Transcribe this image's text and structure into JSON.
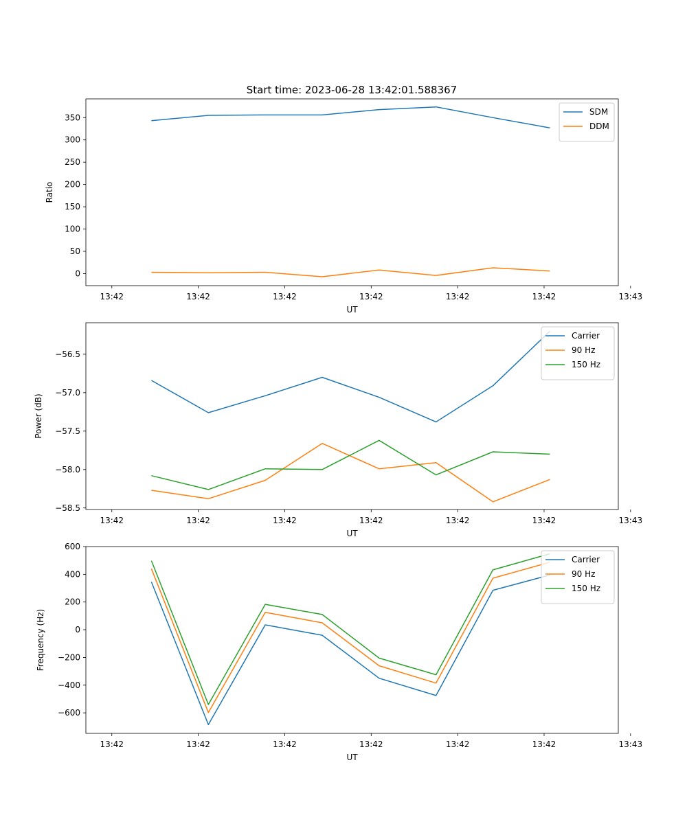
{
  "figure_title": "Start time: 2023-06-28 13:42:01.588367",
  "colors": {
    "blue": "#1f77b4",
    "orange": "#ff7f0e",
    "green": "#2ca02c"
  },
  "chart_data": [
    {
      "type": "line",
      "title": "Start time: 2023-06-28 13:42:01.588367",
      "xlabel": "UT",
      "ylabel": "Ratio",
      "x_ticks": [
        "13:42",
        "13:42",
        "13:42",
        "13:42",
        "13:42",
        "13:42",
        "13:43"
      ],
      "x_tick_values": [
        0,
        12,
        24,
        36,
        48,
        60,
        72
      ],
      "xlim": [
        -3.6,
        70.3
      ],
      "x": [
        5.5,
        13.4,
        21.3,
        29.2,
        37.1,
        45.0,
        52.9,
        60.8
      ],
      "ylim": [
        -27,
        392
      ],
      "y_ticks": [
        0,
        50,
        100,
        150,
        200,
        250,
        300,
        350
      ],
      "legend_loc": "upper right",
      "grid": false,
      "series": [
        {
          "name": "SDM",
          "color": "#1f77b4",
          "values": [
            343,
            355,
            356,
            356,
            368,
            374,
            350,
            327
          ]
        },
        {
          "name": "DDM",
          "color": "#ff7f0e",
          "values": [
            3,
            2,
            3,
            -7,
            8,
            -4,
            13,
            6
          ]
        }
      ]
    },
    {
      "type": "line",
      "title": "",
      "xlabel": "UT",
      "ylabel": "Power (dB)",
      "x_ticks": [
        "13:42",
        "13:42",
        "13:42",
        "13:42",
        "13:42",
        "13:42",
        "13:43"
      ],
      "x_tick_values": [
        0,
        12,
        24,
        36,
        48,
        60,
        72
      ],
      "xlim": [
        -3.6,
        70.3
      ],
      "x": [
        5.5,
        13.4,
        21.3,
        29.2,
        37.1,
        45.0,
        52.9,
        60.8
      ],
      "ylim": [
        -58.52,
        -56.09
      ],
      "y_ticks": [
        -58.5,
        -58.0,
        -57.5,
        -57.0,
        -56.5
      ],
      "y_tick_labels": [
        "−58.5",
        "−58.0",
        "−57.5",
        "−57.0",
        "−56.5"
      ],
      "legend_loc": "upper right",
      "grid": false,
      "series": [
        {
          "name": "Carrier",
          "color": "#1f77b4",
          "values": [
            -56.84,
            -57.26,
            -57.04,
            -56.8,
            -57.06,
            -57.38,
            -56.91,
            -56.2
          ]
        },
        {
          "name": "90 Hz",
          "color": "#ff7f0e",
          "values": [
            -58.27,
            -58.38,
            -58.14,
            -57.66,
            -57.99,
            -57.91,
            -58.42,
            -58.13
          ]
        },
        {
          "name": "150 Hz",
          "color": "#2ca02c",
          "values": [
            -58.08,
            -58.26,
            -57.99,
            -58.0,
            -57.62,
            -58.07,
            -57.77,
            -57.8
          ]
        }
      ]
    },
    {
      "type": "line",
      "title": "",
      "xlabel": "UT",
      "ylabel": "Frequency (Hz)",
      "x_ticks": [
        "13:42",
        "13:42",
        "13:42",
        "13:42",
        "13:42",
        "13:42",
        "13:43"
      ],
      "x_tick_values": [
        0,
        12,
        24,
        36,
        48,
        60,
        72
      ],
      "xlim": [
        -3.6,
        70.3
      ],
      "x": [
        5.5,
        13.4,
        21.3,
        29.2,
        37.1,
        45.0,
        52.9,
        60.8
      ],
      "ylim": [
        -748,
        600
      ],
      "y_ticks": [
        -600,
        -400,
        -200,
        0,
        200,
        400,
        600
      ],
      "y_tick_labels": [
        "−600",
        "−400",
        "−200",
        "0",
        "200",
        "400",
        "600"
      ],
      "legend_loc": "upper right",
      "grid": false,
      "series": [
        {
          "name": "Carrier",
          "color": "#1f77b4",
          "values": [
            345,
            -685,
            35,
            -40,
            -350,
            -475,
            285,
            395
          ]
        },
        {
          "name": "90 Hz",
          "color": "#ff7f0e",
          "values": [
            440,
            -598,
            125,
            50,
            -260,
            -385,
            372,
            487
          ]
        },
        {
          "name": "150 Hz",
          "color": "#2ca02c",
          "values": [
            498,
            -540,
            183,
            110,
            -205,
            -325,
            432,
            548
          ]
        }
      ]
    }
  ]
}
